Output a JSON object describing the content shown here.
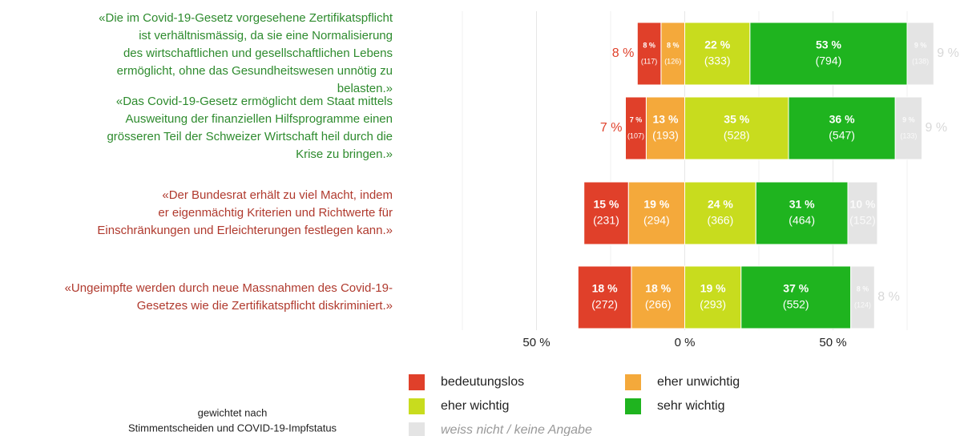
{
  "chart_data": {
    "type": "diverging_bar",
    "categories": [
      [
        "«Die im Covid-19-Gesetz vorgesehene Zertifikatspflicht",
        "ist verhältnismässig, da sie eine Normalisierung",
        "des wirtschaftlichen und gesellschaftlichen Lebens",
        "ermöglicht, ohne das Gesundheitswesen unnötig zu",
        "belasten.»"
      ],
      [
        "«Das Covid-19-Gesetz ermöglicht dem Staat mittels",
        "Ausweitung der finanziellen Hilfsprogramme einen",
        "grösseren Teil der Schweizer Wirtschaft heil durch die",
        "Krise zu bringen.»"
      ],
      [
        "«Der Bundesrat erhält zu viel Macht, indem",
        "er eigenmächtig Kriterien und Richtwerte für",
        "Einschränkungen und Erleichterungen festlegen kann.»"
      ],
      [
        "«Ungeimpfte werden durch neue Massnahmen des Covid-19-",
        "Gesetzes wie die Zertifikatspflicht diskriminiert.»"
      ]
    ],
    "category_colors": [
      "#2e8b2e",
      "#2e8b2e",
      "#b03a2e",
      "#b03a2e"
    ],
    "series": [
      {
        "name": "bedeutungslos",
        "color": "#e0402a",
        "side": "left",
        "values": [
          8,
          7,
          15,
          18
        ],
        "value_labels": [
          "8 %",
          "7 %",
          "15 %",
          "18 %"
        ],
        "counts": [
          117,
          107,
          231,
          272
        ],
        "count_labels": [
          "(117)",
          "(107)",
          "(231)",
          "(272)"
        ]
      },
      {
        "name": "eher unwichtig",
        "color": "#f4a93b",
        "side": "left",
        "values": [
          8,
          13,
          19,
          18
        ],
        "value_labels": [
          "8 %",
          "13 %",
          "19 %",
          "18 %"
        ],
        "counts": [
          126,
          193,
          294,
          266
        ],
        "count_labels": [
          "(126)",
          "(193)",
          "(294)",
          "(266)"
        ]
      },
      {
        "name": "eher wichtig",
        "color": "#c8dc1e",
        "side": "right",
        "values": [
          22,
          35,
          24,
          19
        ],
        "value_labels": [
          "22 %",
          "35 %",
          "24 %",
          "19 %"
        ],
        "counts": [
          333,
          528,
          366,
          293
        ],
        "count_labels": [
          "(333)",
          "(528)",
          "(366)",
          "(293)"
        ]
      },
      {
        "name": "sehr wichtig",
        "color": "#1fb41f",
        "side": "right",
        "values": [
          53,
          36,
          31,
          37
        ],
        "value_labels": [
          "53 %",
          "36 %",
          "31 %",
          "37 %"
        ],
        "counts": [
          794,
          547,
          464,
          552
        ],
        "count_labels": [
          "(794)",
          "(547)",
          "(464)",
          "(552)"
        ]
      },
      {
        "name": "weiss nicht / keine Angabe",
        "color": "#e4e4e4",
        "side": "right",
        "values": [
          9,
          9,
          10,
          8
        ],
        "value_labels": [
          "9 %",
          "9 %",
          "10 %",
          "8 %"
        ],
        "counts": [
          138,
          133,
          152,
          124
        ],
        "count_labels": [
          "(138)",
          "(133)",
          "(152)",
          "(124)"
        ]
      }
    ],
    "xlim": [
      -75,
      75
    ],
    "xticks": [
      {
        "value": -50,
        "label": "50 %"
      },
      {
        "value": 0,
        "label": "0 %"
      },
      {
        "value": 50,
        "label": "50 %"
      }
    ],
    "xminor": [
      -75,
      -25,
      25,
      75
    ],
    "grid": true,
    "note": [
      "gewichtet nach",
      "Stimmentscheiden und COVID-19-Impfstatus"
    ]
  }
}
